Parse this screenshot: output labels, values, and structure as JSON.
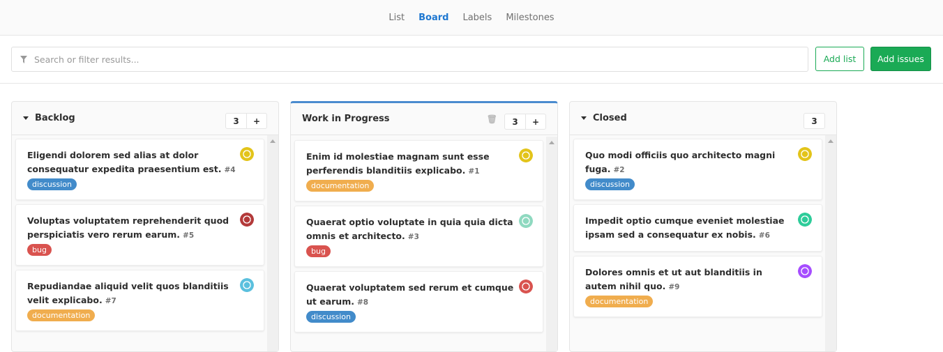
{
  "nav": {
    "tabs": [
      {
        "label": "List"
      },
      {
        "label": "Board",
        "active": true
      },
      {
        "label": "Labels"
      },
      {
        "label": "Milestones"
      }
    ]
  },
  "filter": {
    "placeholder": "Search or filter results...",
    "add_list": "Add list",
    "add_issues": "Add issues"
  },
  "colors": {
    "accent": "#1f78d1",
    "green": "#1aaa55",
    "discussion": "#428bca",
    "documentation": "#f0ad4e",
    "bug": "#d9534f"
  },
  "columns": [
    {
      "title": "Backlog",
      "count": "3",
      "collapsible": true,
      "add": "+",
      "issues": [
        {
          "title": "Eligendi dolorem sed alias at dolor consequatur expedita praesentium est.",
          "number": "#4",
          "label": "discussion",
          "avatar_color": "#e3c41a"
        },
        {
          "title": "Voluptas voluptatem reprehenderit quod perspiciatis vero rerum earum.",
          "number": "#5",
          "label": "bug",
          "avatar_color": "#b33a3a"
        },
        {
          "title": "Repudiandae aliquid velit quos blanditiis velit explicabo.",
          "number": "#7",
          "label": "documentation",
          "avatar_color": "#5bc0de"
        }
      ]
    },
    {
      "title": "Work in Progress",
      "count": "3",
      "add": "+",
      "issues": [
        {
          "title": "Enim id molestiae magnam sunt esse perferendis blanditiis explicabo.",
          "number": "#1",
          "label": "documentation",
          "avatar_color": "#e3c41a"
        },
        {
          "title": "Quaerat optio voluptate in quia quia dicta omnis et architecto.",
          "number": "#3",
          "label": "bug",
          "avatar_color": "#8fd9c0"
        },
        {
          "title": "Quaerat voluptatem sed rerum et cumque ut earum.",
          "number": "#8",
          "label": "discussion",
          "avatar_color": "#d9534f"
        }
      ]
    },
    {
      "title": "Closed",
      "count": "3",
      "collapsible": true,
      "issues": [
        {
          "title": "Quo modi officiis quo architecto magni fuga.",
          "number": "#2",
          "label": "discussion",
          "avatar_color": "#e3c41a"
        },
        {
          "title": "Impedit optio cumque eveniet molestiae ipsam sed a consequatur ex nobis.",
          "number": "#6",
          "label": "",
          "avatar_color": "#2ecc9a"
        },
        {
          "title": "Dolores omnis et ut aut blanditiis in autem nihil quo.",
          "number": "#9",
          "label": "documentation",
          "avatar_color": "#a64dff"
        }
      ]
    }
  ]
}
